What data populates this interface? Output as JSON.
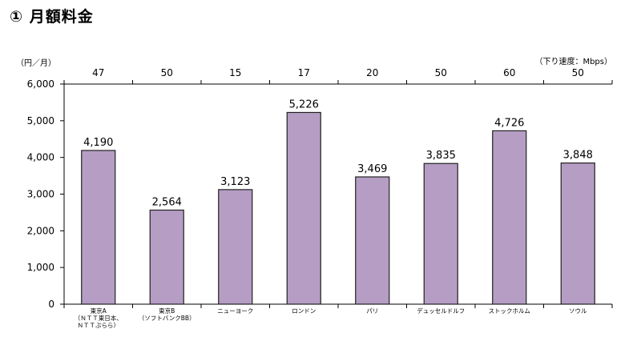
{
  "heading": "① 月額料金",
  "chart_data": {
    "type": "bar",
    "y_unit_label": "（円／月）",
    "speed_unit_label": "（下り速度：Mbps）",
    "categories": [
      [
        "東京A",
        "（ＮＴＴ東日本、",
        "ＮＴＴぷらら）"
      ],
      [
        "東京B",
        "（ソフトバンクBB）"
      ],
      [
        "ニューヨーク"
      ],
      [
        "ロンドン"
      ],
      [
        "パリ"
      ],
      [
        "デュッセルドルフ"
      ],
      [
        "ストックホルム"
      ],
      [
        "ソウル"
      ]
    ],
    "values": [
      4190,
      2564,
      3123,
      5226,
      3469,
      3835,
      4726,
      3848
    ],
    "value_labels": [
      "4,190",
      "2,564",
      "3,123",
      "5,226",
      "3,469",
      "3,835",
      "4,726",
      "3,848"
    ],
    "speeds": [
      "47",
      "50",
      "15",
      "17",
      "20",
      "50",
      "60",
      "50"
    ],
    "ylim": [
      0,
      6000
    ],
    "yticks": [
      0,
      1000,
      2000,
      3000,
      4000,
      5000,
      6000
    ],
    "ytick_labels": [
      "0",
      "1,000",
      "2,000",
      "3,000",
      "4,000",
      "5,000",
      "6,000"
    ],
    "grid": false,
    "bar_color": "#b59dc4",
    "bar_edge_color": "#222222"
  }
}
